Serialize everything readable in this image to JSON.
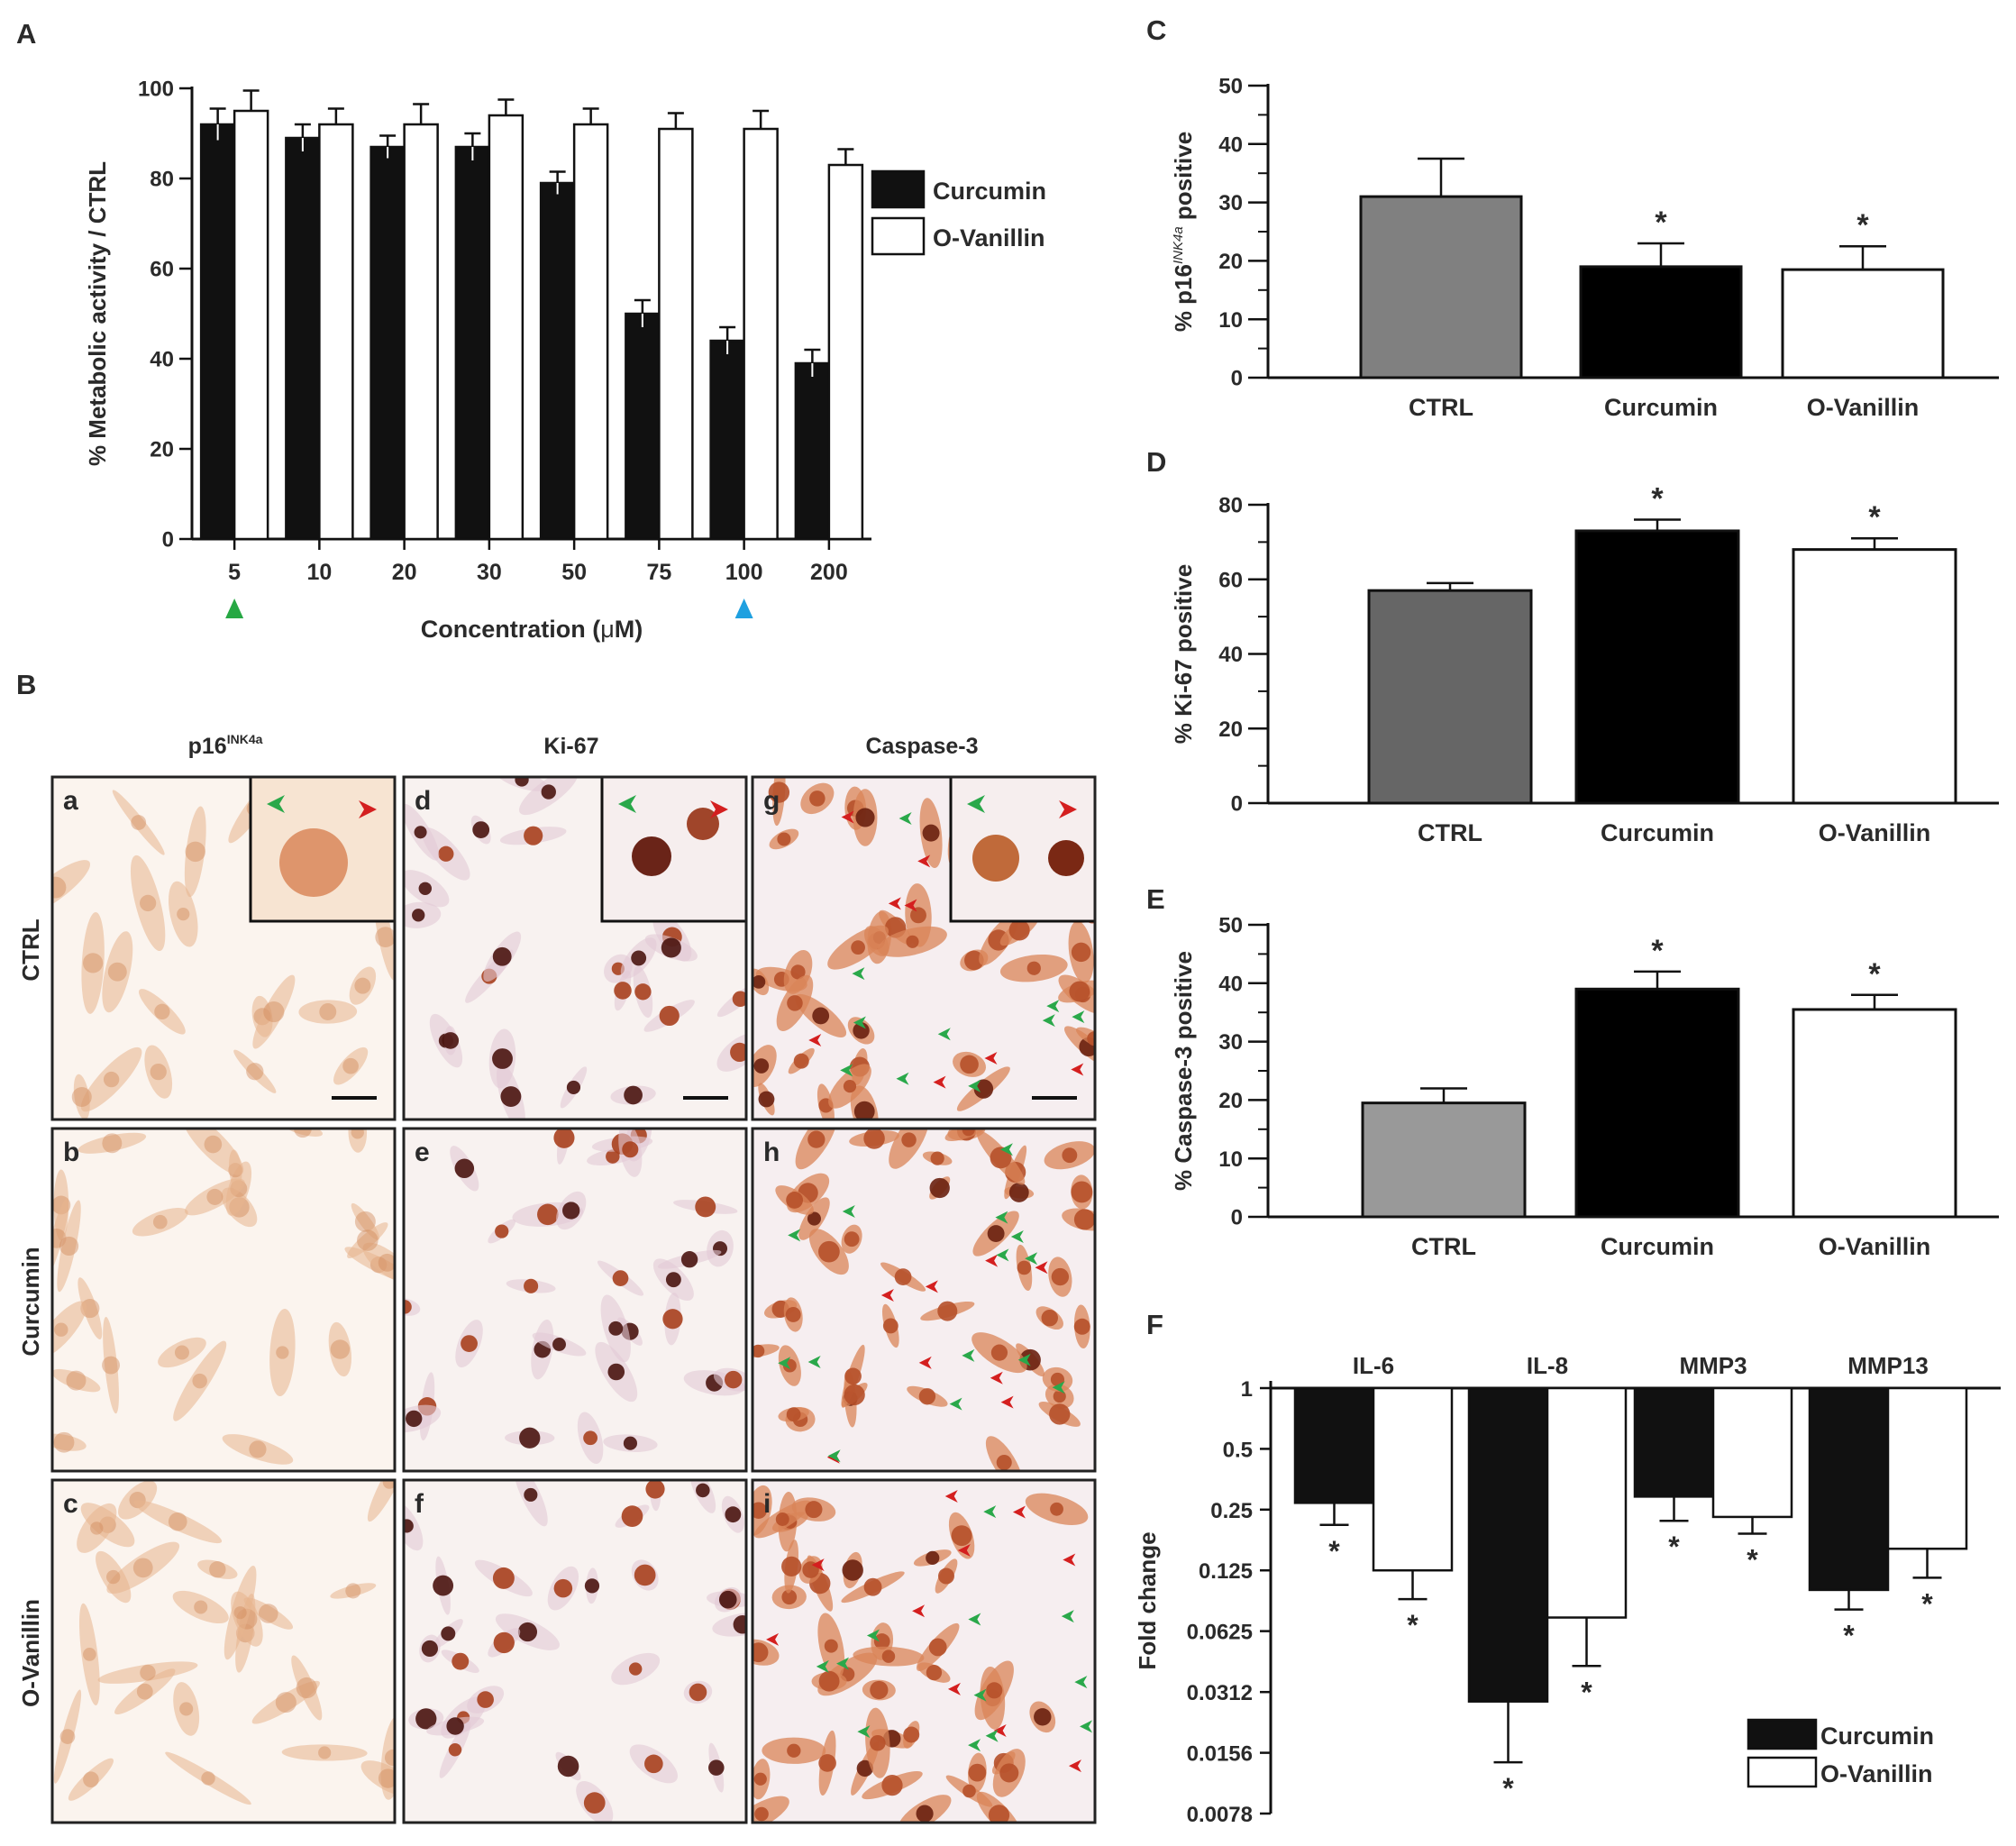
{
  "chart_data": [
    {
      "id": "A",
      "panel_label": "A",
      "type": "bar",
      "categories": [
        "5",
        "10",
        "20",
        "30",
        "50",
        "75",
        "100",
        "200"
      ],
      "series": [
        {
          "name": "Curcumin",
          "color": "#111111",
          "values": [
            92,
            89,
            87,
            87,
            79,
            50,
            44,
            39
          ],
          "errors": [
            3.5,
            3,
            2.5,
            3,
            2.5,
            3,
            3,
            3
          ]
        },
        {
          "name": "O-Vanillin",
          "color": "#ffffff",
          "values": [
            95,
            92,
            92,
            94,
            92,
            91,
            91,
            83
          ],
          "errors": [
            4.5,
            3.5,
            4.5,
            3.5,
            3.5,
            3.5,
            4,
            3.5
          ]
        }
      ],
      "ylabel": "% Metabolic activity / CTRL",
      "xlabel_prefix": "Concentration (",
      "xlabel_mu": "μ",
      "xlabel_suffix": "M)",
      "ylim": [
        0,
        100
      ],
      "yticks": [
        "0",
        "20",
        "40",
        "60",
        "80",
        "100"
      ],
      "legend": [
        "Curcumin",
        "O-Vanillin"
      ],
      "markers": [
        {
          "category": "5",
          "color": "#27a844"
        },
        {
          "category": "100",
          "color": "#1fa0e0"
        }
      ]
    },
    {
      "id": "C",
      "panel_label": "C",
      "type": "bar",
      "categories": [
        "CTRL",
        "Curcumin",
        "O-Vanillin"
      ],
      "values": [
        31,
        19,
        18.5
      ],
      "errors": [
        6.5,
        4,
        4
      ],
      "colors": [
        "#808080",
        "#000000",
        "#ffffff"
      ],
      "significance": [
        "",
        "*",
        "*"
      ],
      "ylabel_prefix": "% p16",
      "ylabel_sup": "INK4a",
      "ylabel_suffix": " positive",
      "ylim": [
        0,
        50
      ],
      "yticks": [
        "0",
        "10",
        "20",
        "30",
        "40",
        "50"
      ]
    },
    {
      "id": "D",
      "panel_label": "D",
      "type": "bar",
      "categories": [
        "CTRL",
        "Curcumin",
        "O-Vanillin"
      ],
      "values": [
        57,
        73,
        68
      ],
      "errors": [
        2,
        3,
        3
      ],
      "colors": [
        "#666666",
        "#000000",
        "#ffffff"
      ],
      "significance": [
        "",
        "*",
        "*"
      ],
      "ylabel": "% Ki-67 positive",
      "ylim": [
        0,
        80
      ],
      "yticks": [
        "0",
        "20",
        "40",
        "60",
        "80"
      ]
    },
    {
      "id": "E",
      "panel_label": "E",
      "type": "bar",
      "categories": [
        "CTRL",
        "Curcumin",
        "O-Vanillin"
      ],
      "values": [
        19.5,
        39,
        35.5
      ],
      "errors": [
        2.5,
        3,
        2.5
      ],
      "colors": [
        "#999999",
        "#000000",
        "#ffffff"
      ],
      "significance": [
        "",
        "*",
        "*"
      ],
      "ylabel": "% Caspase-3 positive",
      "ylim": [
        0,
        50
      ],
      "yticks": [
        "0",
        "10",
        "20",
        "30",
        "40",
        "50"
      ]
    },
    {
      "id": "F",
      "panel_label": "F",
      "type": "bar",
      "categories": [
        "IL-6",
        "IL-8",
        "MMP3",
        "MMP13"
      ],
      "series": [
        {
          "name": "Curcumin",
          "color": "#111111",
          "values": [
            0.27,
            0.028,
            0.29,
            0.1
          ],
          "errors_low": [
            0.21,
            0.014,
            0.22,
            0.08
          ]
        },
        {
          "name": "O-Vanillin",
          "color": "#ffffff",
          "values": [
            0.125,
            0.073,
            0.23,
            0.16
          ],
          "errors_low": [
            0.09,
            0.042,
            0.19,
            0.115
          ]
        }
      ],
      "significance": [
        "*",
        "*",
        "*",
        "*",
        "*",
        "*",
        "*",
        "*"
      ],
      "ylabel": "Fold change",
      "yscale": "log2",
      "ylim": [
        0.0078,
        1
      ],
      "yticks": [
        "1",
        "0.5",
        "0.25",
        "0.125",
        "0.0625",
        "0.0312",
        "0.0156",
        "0.0078"
      ],
      "legend": [
        "Curcumin",
        "O-Vanillin"
      ]
    }
  ],
  "panel_B": {
    "label": "B",
    "columns": [
      {
        "prefix": "p16",
        "sup": "INK4a"
      },
      {
        "prefix": "Ki-67",
        "sup": ""
      },
      {
        "prefix": "Caspase-3",
        "sup": ""
      }
    ],
    "rows": [
      "CTRL",
      "Curcumin",
      "O-Vanillin"
    ],
    "cells": [
      "a",
      "d",
      "g",
      "b",
      "e",
      "h",
      "c",
      "f",
      "i"
    ]
  }
}
